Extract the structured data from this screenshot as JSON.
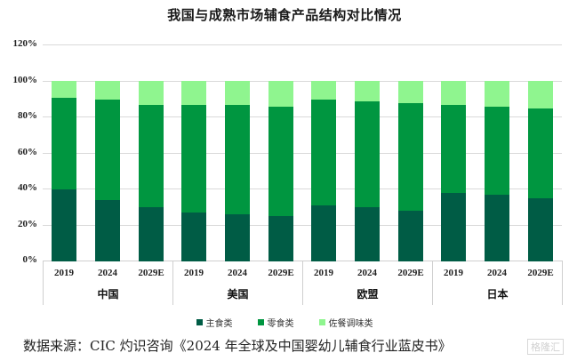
{
  "chart_data": {
    "type": "bar",
    "stacked": true,
    "title": "我国与成熟市场辅食产品结构对比情况",
    "xlabel": "",
    "ylabel": "",
    "ylim": [
      0,
      120
    ],
    "yticks": [
      "0%",
      "20%",
      "40%",
      "60%",
      "80%",
      "100%",
      "120%"
    ],
    "grid": true,
    "legend_position": "bottom",
    "groups": [
      {
        "name": "中国",
        "categories": [
          "2019",
          "2024",
          "2029E"
        ]
      },
      {
        "name": "美国",
        "categories": [
          "2019",
          "2024",
          "2029E"
        ]
      },
      {
        "name": "欧盟",
        "categories": [
          "2019",
          "2024",
          "2029E"
        ]
      },
      {
        "name": "日本",
        "categories": [
          "2019",
          "2024",
          "2029E"
        ]
      }
    ],
    "categories": [
      "中国 2019",
      "中国 2024",
      "中国 2029E",
      "美国 2019",
      "美国 2024",
      "美国 2029E",
      "欧盟 2019",
      "欧盟 2024",
      "欧盟 2029E",
      "日本 2019",
      "日本 2024",
      "日本 2029E"
    ],
    "series": [
      {
        "name": "主食类",
        "color": "#005C45",
        "values": [
          40,
          34,
          30,
          27,
          26,
          25,
          31,
          30,
          28,
          38,
          37,
          35
        ]
      },
      {
        "name": "零食类",
        "color": "#009640",
        "values": [
          51,
          56,
          57,
          60,
          61,
          61,
          59,
          59,
          60,
          49,
          49,
          50
        ]
      },
      {
        "name": "佐餐调味类",
        "color": "#8FF58F",
        "values": [
          9,
          10,
          13,
          13,
          13,
          14,
          10,
          11,
          12,
          13,
          14,
          15
        ]
      }
    ]
  },
  "footer": {
    "source": "数据来源：CIC 灼识咨询《2024 年全球及中国婴幼儿辅食行业蓝皮书》",
    "watermark": "格隆汇"
  }
}
